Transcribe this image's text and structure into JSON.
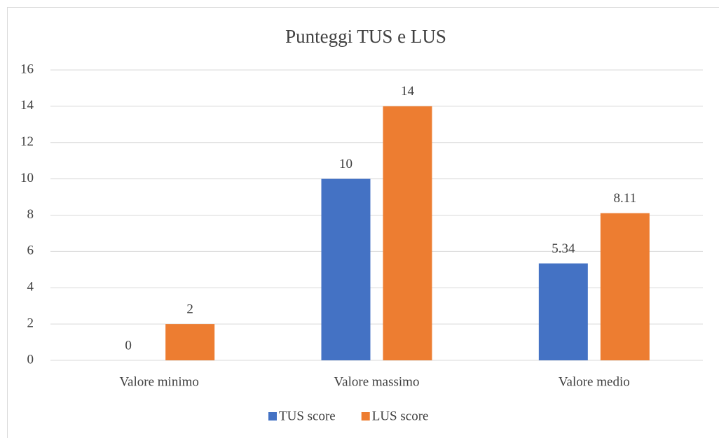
{
  "chart_data": {
    "type": "bar",
    "title": "Punteggi TUS e LUS",
    "categories": [
      "Valore minimo",
      "Valore massimo",
      "Valore medio"
    ],
    "series": [
      {
        "name": "TUS score",
        "color": "#4472c4",
        "values": [
          0,
          10,
          5.34
        ]
      },
      {
        "name": "LUS score",
        "color": "#ed7d31",
        "values": [
          2,
          14,
          8.11
        ]
      }
    ],
    "ylim": [
      0,
      16
    ],
    "yticks": [
      0,
      2,
      4,
      6,
      8,
      10,
      12,
      14,
      16
    ],
    "grid": true,
    "legend": "bottom"
  }
}
